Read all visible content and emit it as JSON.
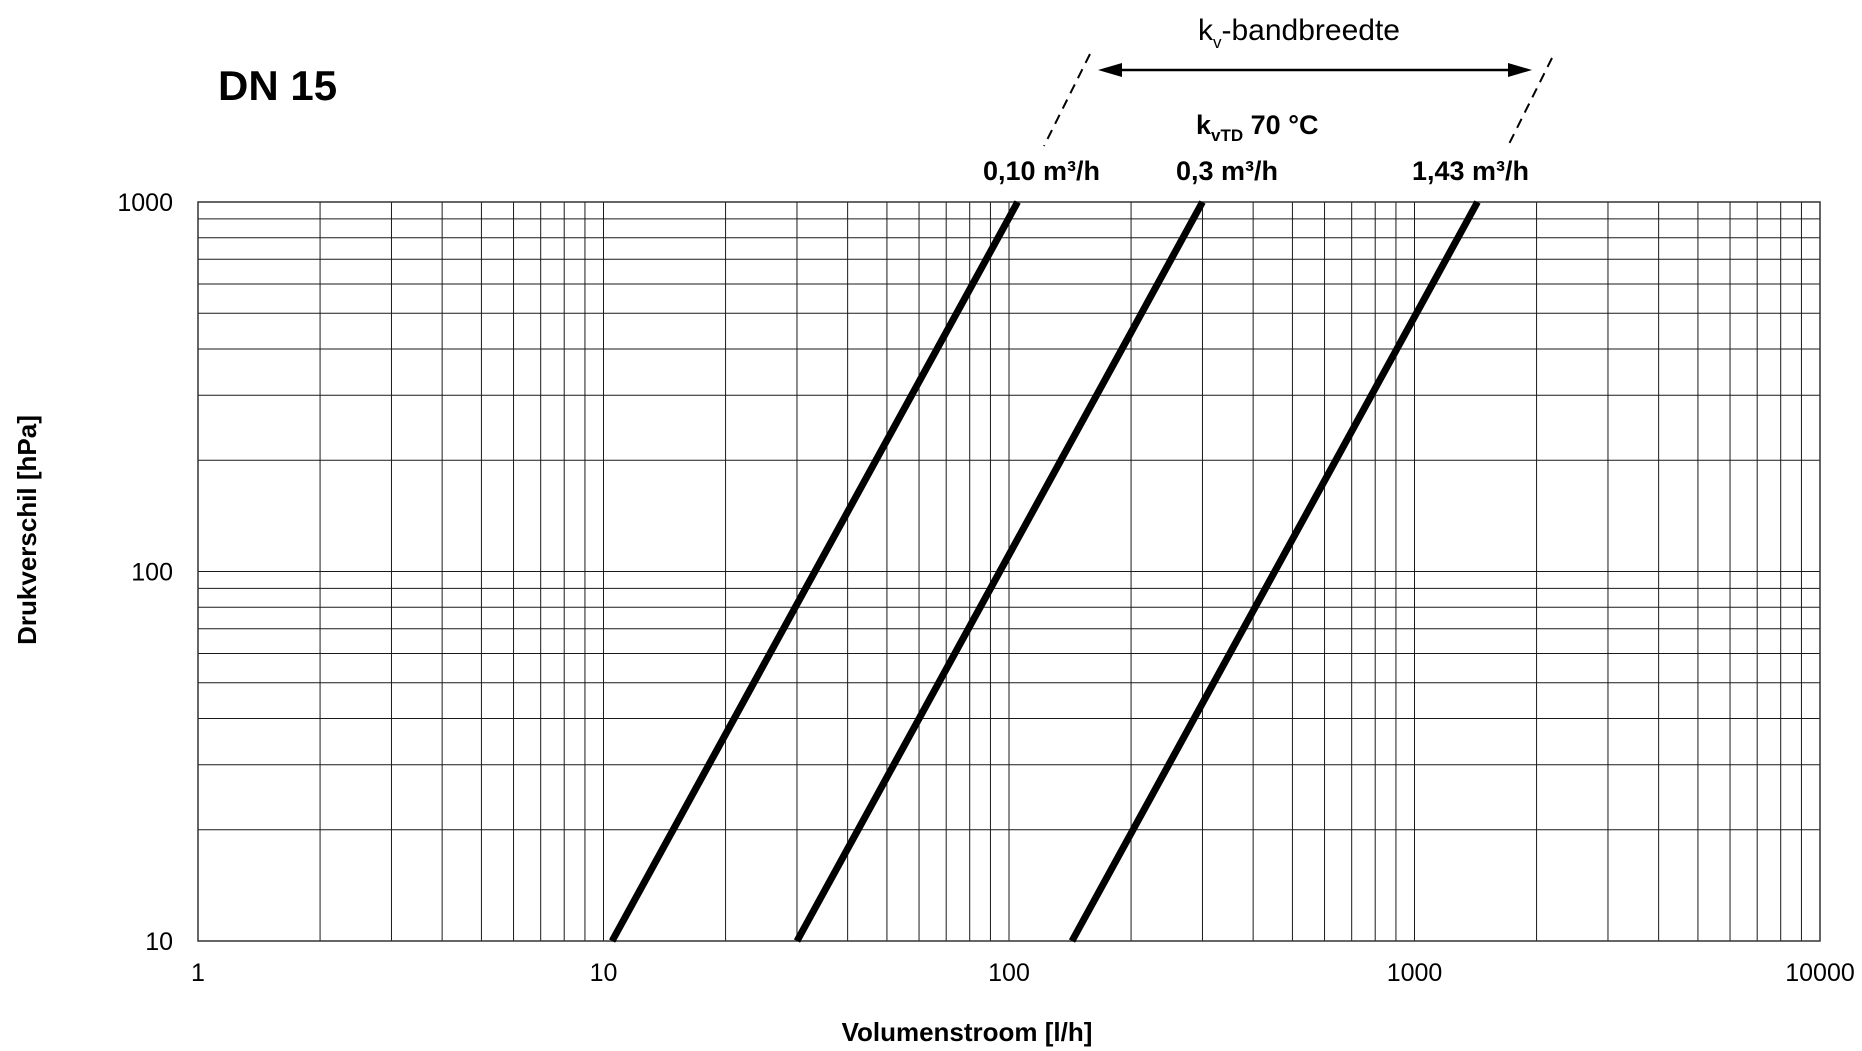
{
  "title": "DN 15",
  "annotations": {
    "bandwidth_main": "k",
    "bandwidth_sub": "v",
    "bandwidth_rest": "-bandbreedte",
    "kvtd_main": "k",
    "kvtd_sub": "vTD",
    "kvtd_rest": " 70 °C"
  },
  "chart_data": {
    "type": "line",
    "title": "DN 15",
    "xlabel": "Volumenstroom [l/h]",
    "ylabel": "Drukverschil [hPa]",
    "xscale": "log",
    "yscale": "log",
    "xlim": [
      1,
      10000
    ],
    "ylim": [
      10,
      1000
    ],
    "xticks": [
      1,
      10,
      100,
      1000,
      10000
    ],
    "xtick_labels": [
      "1",
      "10",
      "100",
      "1000",
      "10000"
    ],
    "yticks": [
      10,
      100,
      1000
    ],
    "ytick_labels": [
      "10",
      "100",
      "1000"
    ],
    "grid": true,
    "series": [
      {
        "name": "0,10 m³/h",
        "kv": 0.1,
        "x": [
          10.5,
          100,
          105
        ],
        "y": [
          10,
          906,
          1000
        ]
      },
      {
        "name": "0,3 m³/h",
        "kv": 0.3,
        "x": [
          30,
          200,
          300
        ],
        "y": [
          10,
          444,
          1000
        ]
      },
      {
        "name": "1,43 m³/h",
        "kv": 1.43,
        "x": [
          143,
          1000,
          1430
        ],
        "y": [
          10,
          489,
          1000
        ]
      }
    ]
  }
}
